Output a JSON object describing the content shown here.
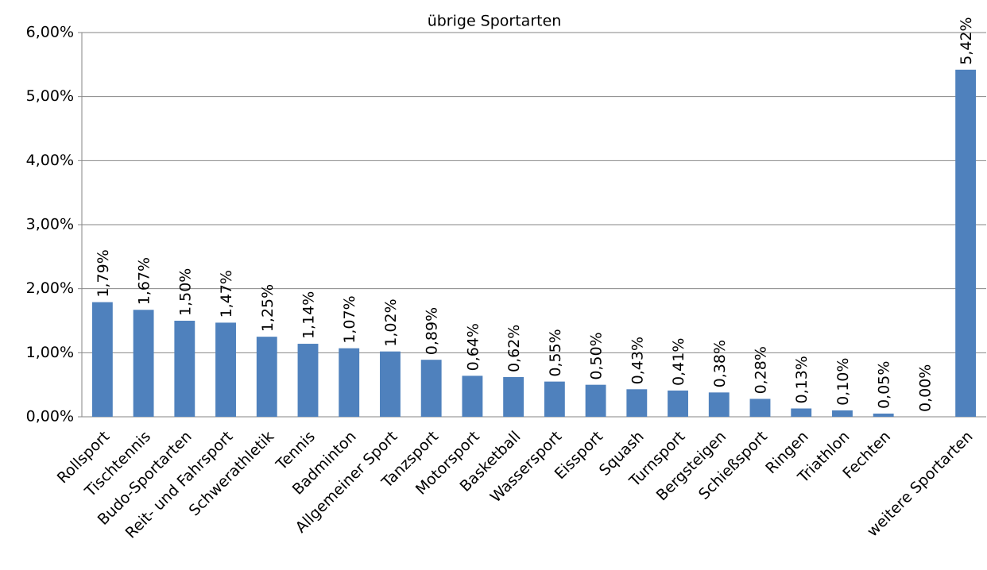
{
  "chart_data": {
    "type": "bar",
    "title": "übrige Sportarten",
    "categories": [
      "Rollsport",
      "Tischtennis",
      "Budo-Sportarten",
      "Reit- und Fahrsport",
      "Schwerathletik",
      "Tennis",
      "Badminton",
      "Allgemeiner Sport",
      "Tanzsport",
      "Motorsport",
      "Basketball",
      "Wassersport",
      "Eissport",
      "Squash",
      "Turnsport",
      "Bergsteigen",
      "Schießsport",
      "Ringen",
      "Triathlon",
      "Fechten",
      null,
      "weitere Sportarten"
    ],
    "values": [
      1.79,
      1.67,
      1.5,
      1.47,
      1.25,
      1.14,
      1.07,
      1.02,
      0.89,
      0.64,
      0.62,
      0.55,
      0.5,
      0.43,
      0.41,
      0.38,
      0.28,
      0.13,
      0.1,
      0.05,
      0.0,
      5.42
    ],
    "value_labels": [
      "1,79%",
      "1,67%",
      "1,50%",
      "1,47%",
      "1,25%",
      "1,14%",
      "1,07%",
      "1,02%",
      "0,89%",
      "0,64%",
      "0,62%",
      "0,55%",
      "0,50%",
      "0,43%",
      "0,41%",
      "0,38%",
      "0,28%",
      "0,13%",
      "0,10%",
      "0,05%",
      "0,00%",
      "5,42%"
    ],
    "color": "#4f81bd",
    "ylim": [
      0,
      6
    ],
    "yticks": [
      {
        "value": 0,
        "label": "0,00%"
      },
      {
        "value": 1,
        "label": "1,00%"
      },
      {
        "value": 2,
        "label": "2,00%"
      },
      {
        "value": 3,
        "label": "3,00%"
      },
      {
        "value": 4,
        "label": "4,00%"
      },
      {
        "value": 5,
        "label": "5,00%"
      },
      {
        "value": 6,
        "label": "6,00%"
      }
    ],
    "grid": true
  }
}
